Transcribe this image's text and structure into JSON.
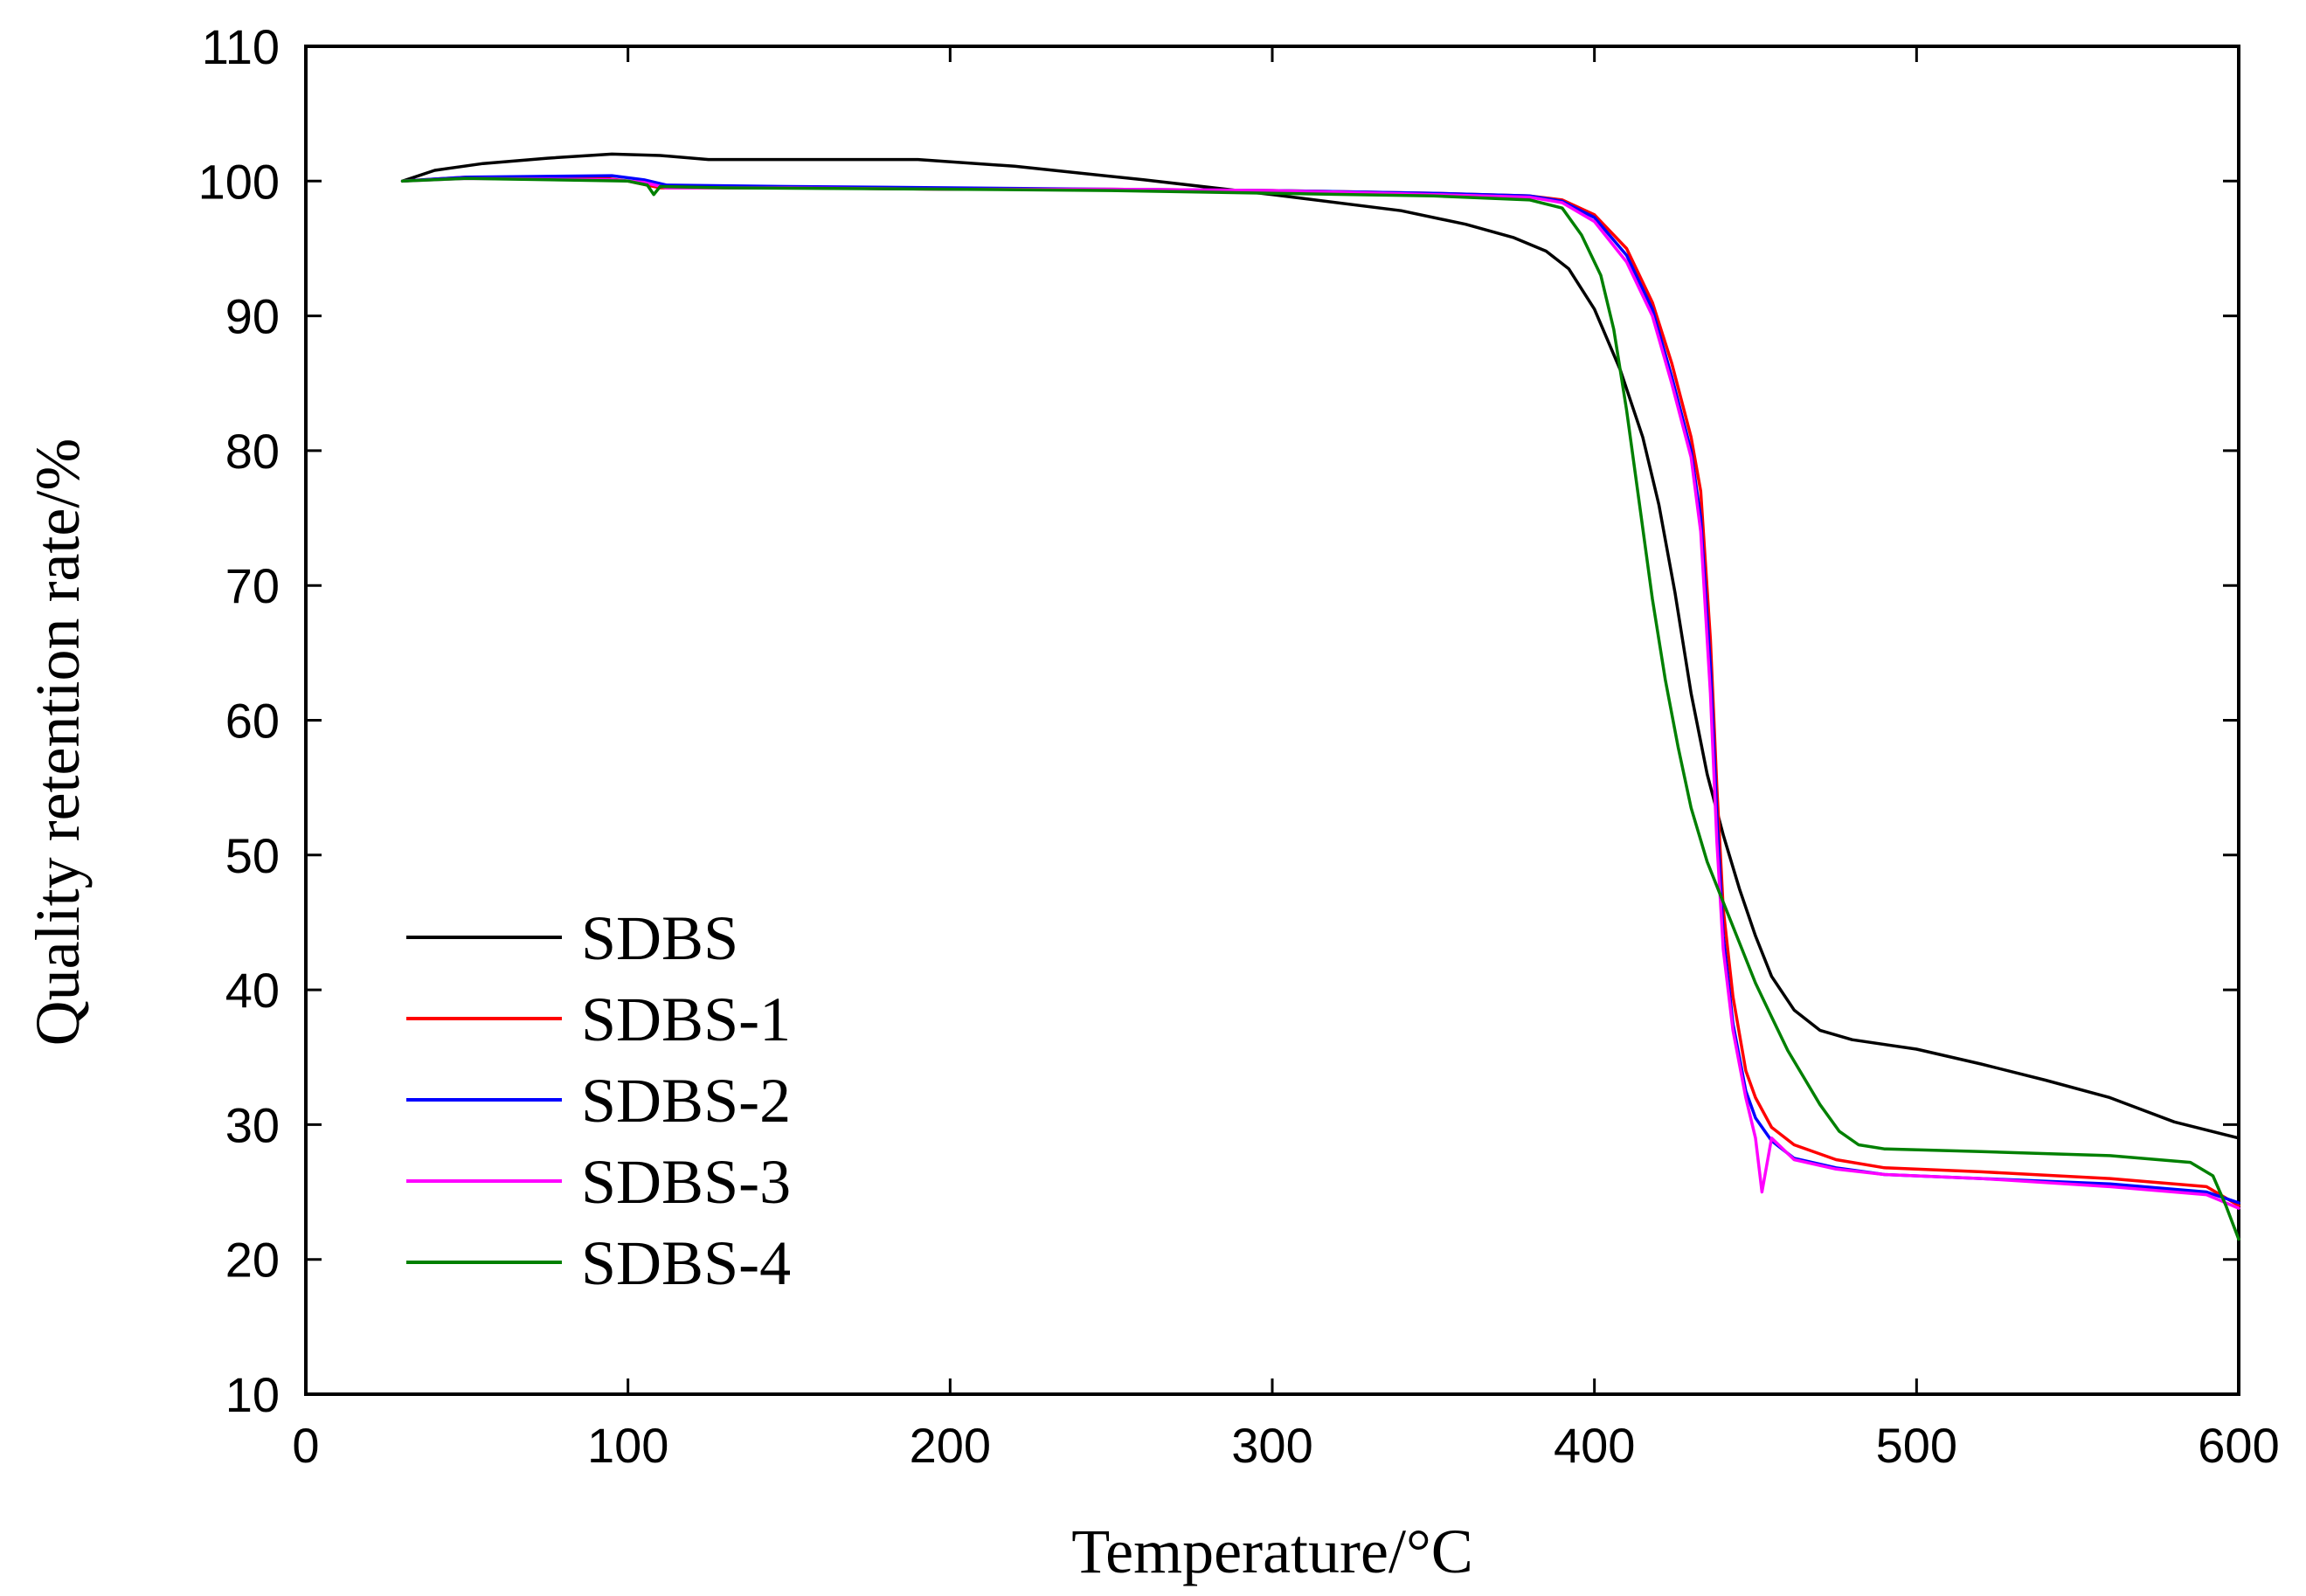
{
  "chart_data": {
    "type": "line",
    "title": "",
    "xlabel": "Temperature/°C",
    "ylabel": "Quality retention rate/%",
    "xlim": [
      0,
      600
    ],
    "ylim": [
      10,
      110
    ],
    "xticks": [
      0,
      100,
      200,
      300,
      400,
      500,
      600
    ],
    "yticks": [
      10,
      20,
      30,
      40,
      50,
      60,
      70,
      80,
      90,
      100,
      110
    ],
    "grid": false,
    "legend_position": "bottom-left",
    "series": [
      {
        "name": "SDBS",
        "color": "#000000",
        "points": [
          [
            30,
            100
          ],
          [
            40,
            100.8
          ],
          [
            55,
            101.3
          ],
          [
            75,
            101.7
          ],
          [
            95,
            102
          ],
          [
            110,
            101.9
          ],
          [
            125,
            101.6
          ],
          [
            150,
            101.6
          ],
          [
            190,
            101.6
          ],
          [
            220,
            101.1
          ],
          [
            260,
            100.1
          ],
          [
            300,
            99
          ],
          [
            340,
            97.8
          ],
          [
            360,
            96.8
          ],
          [
            375,
            95.8
          ],
          [
            385,
            94.8
          ],
          [
            392,
            93.5
          ],
          [
            400,
            90.5
          ],
          [
            408,
            86
          ],
          [
            415,
            81
          ],
          [
            420,
            76
          ],
          [
            425,
            69.5
          ],
          [
            430,
            62
          ],
          [
            435,
            56
          ],
          [
            440,
            51.5
          ],
          [
            445,
            47.5
          ],
          [
            450,
            44
          ],
          [
            455,
            41
          ],
          [
            462,
            38.5
          ],
          [
            470,
            37
          ],
          [
            480,
            36.3
          ],
          [
            500,
            35.6
          ],
          [
            520,
            34.5
          ],
          [
            540,
            33.3
          ],
          [
            560,
            32
          ],
          [
            580,
            30.2
          ],
          [
            600,
            29
          ]
        ]
      },
      {
        "name": "SDBS-1",
        "color": "#ff0000",
        "points": [
          [
            30,
            100
          ],
          [
            50,
            100.3
          ],
          [
            90,
            100.3
          ],
          [
            100,
            100
          ],
          [
            110,
            99.5
          ],
          [
            150,
            99.5
          ],
          [
            200,
            99.4
          ],
          [
            250,
            99.4
          ],
          [
            300,
            99.3
          ],
          [
            350,
            99.1
          ],
          [
            380,
            98.9
          ],
          [
            390,
            98.6
          ],
          [
            400,
            97.5
          ],
          [
            410,
            95
          ],
          [
            418,
            91
          ],
          [
            424,
            86.5
          ],
          [
            430,
            81
          ],
          [
            433,
            77
          ],
          [
            436,
            66
          ],
          [
            438,
            55
          ],
          [
            440,
            46
          ],
          [
            443,
            39.5
          ],
          [
            447,
            34
          ],
          [
            450,
            32
          ],
          [
            455,
            29.8
          ],
          [
            462,
            28.5
          ],
          [
            475,
            27.4
          ],
          [
            490,
            26.8
          ],
          [
            520,
            26.5
          ],
          [
            560,
            26
          ],
          [
            590,
            25.4
          ],
          [
            600,
            24
          ]
        ]
      },
      {
        "name": "SDBS-2",
        "color": "#0000ff",
        "points": [
          [
            30,
            100
          ],
          [
            50,
            100.3
          ],
          [
            95,
            100.4
          ],
          [
            105,
            100.1
          ],
          [
            112,
            99.7
          ],
          [
            150,
            99.6
          ],
          [
            200,
            99.5
          ],
          [
            250,
            99.4
          ],
          [
            300,
            99.3
          ],
          [
            350,
            99.1
          ],
          [
            380,
            98.9
          ],
          [
            390,
            98.5
          ],
          [
            400,
            97.3
          ],
          [
            410,
            94.5
          ],
          [
            418,
            90.5
          ],
          [
            424,
            85.5
          ],
          [
            430,
            80
          ],
          [
            433,
            75
          ],
          [
            436,
            64
          ],
          [
            438,
            53
          ],
          [
            440,
            44
          ],
          [
            443,
            37.5
          ],
          [
            447,
            32.5
          ],
          [
            450,
            30.5
          ],
          [
            455,
            28.8
          ],
          [
            462,
            27.5
          ],
          [
            475,
            26.8
          ],
          [
            490,
            26.3
          ],
          [
            520,
            26
          ],
          [
            560,
            25.6
          ],
          [
            590,
            25
          ],
          [
            600,
            24.2
          ]
        ]
      },
      {
        "name": "SDBS-3",
        "color": "#ff00ff",
        "points": [
          [
            30,
            100
          ],
          [
            50,
            100.2
          ],
          [
            95,
            100.1
          ],
          [
            105,
            99.9
          ],
          [
            112,
            99.5
          ],
          [
            150,
            99.5
          ],
          [
            200,
            99.4
          ],
          [
            250,
            99.4
          ],
          [
            300,
            99.3
          ],
          [
            350,
            99
          ],
          [
            380,
            98.8
          ],
          [
            390,
            98.4
          ],
          [
            400,
            97
          ],
          [
            410,
            94
          ],
          [
            418,
            90
          ],
          [
            424,
            85
          ],
          [
            430,
            79.5
          ],
          [
            433,
            74
          ],
          [
            436,
            62
          ],
          [
            438,
            51
          ],
          [
            440,
            43
          ],
          [
            443,
            37
          ],
          [
            447,
            32
          ],
          [
            450,
            29
          ],
          [
            452,
            25
          ],
          [
            455,
            29
          ],
          [
            462,
            27.4
          ],
          [
            475,
            26.7
          ],
          [
            490,
            26.3
          ],
          [
            520,
            26
          ],
          [
            560,
            25.4
          ],
          [
            590,
            24.8
          ],
          [
            600,
            23.8
          ]
        ]
      },
      {
        "name": "SDBS-4",
        "color": "#008000",
        "points": [
          [
            30,
            100
          ],
          [
            50,
            100.2
          ],
          [
            100,
            100
          ],
          [
            106,
            99.7
          ],
          [
            108,
            99
          ],
          [
            110,
            99.6
          ],
          [
            130,
            99.5
          ],
          [
            200,
            99.4
          ],
          [
            250,
            99.3
          ],
          [
            300,
            99.1
          ],
          [
            350,
            98.9
          ],
          [
            380,
            98.6
          ],
          [
            390,
            98
          ],
          [
            396,
            96
          ],
          [
            402,
            93
          ],
          [
            406,
            89
          ],
          [
            410,
            83
          ],
          [
            414,
            76
          ],
          [
            418,
            69
          ],
          [
            422,
            63
          ],
          [
            426,
            58
          ],
          [
            430,
            53.5
          ],
          [
            435,
            49.5
          ],
          [
            440,
            46.5
          ],
          [
            445,
            43.5
          ],
          [
            450,
            40.5
          ],
          [
            455,
            38
          ],
          [
            460,
            35.5
          ],
          [
            465,
            33.5
          ],
          [
            470,
            31.5
          ],
          [
            476,
            29.5
          ],
          [
            482,
            28.5
          ],
          [
            490,
            28.2
          ],
          [
            520,
            28
          ],
          [
            560,
            27.7
          ],
          [
            585,
            27.2
          ],
          [
            592,
            26.2
          ],
          [
            596,
            24
          ],
          [
            600,
            21.5
          ]
        ]
      }
    ]
  }
}
